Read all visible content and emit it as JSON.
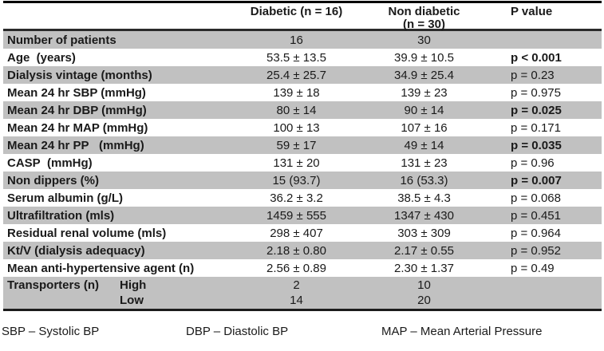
{
  "header": {
    "diabetic": "Diabetic (n = 16)",
    "nondiabetic_line1": "Non diabetic",
    "nondiabetic_line2": "(n = 30)",
    "p_value": "P value"
  },
  "rows": [
    {
      "label": "Number of patients",
      "diabetic": "16",
      "nondiabetic": "30",
      "p": ""
    },
    {
      "label": "Age  (years)",
      "diabetic": "53.5 ± 13.5",
      "nondiabetic": "39.9 ± 10.5",
      "p": "p < 0.001"
    },
    {
      "label": "Dialysis vintage (months)",
      "diabetic": "25.4 ± 25.7",
      "nondiabetic": "34.9 ± 25.4",
      "p": "p = 0.23"
    },
    {
      "label": "Mean 24 hr SBP (mmHg)",
      "diabetic": "139 ± 18",
      "nondiabetic": "139 ± 23",
      "p": "p = 0.975"
    },
    {
      "label": "Mean 24 hr DBP (mmHg)",
      "diabetic": "80 ± 14",
      "nondiabetic": "90 ± 14",
      "p": "p = 0.025"
    },
    {
      "label": "Mean 24 hr MAP (mmHg)",
      "diabetic": "100 ± 13",
      "nondiabetic": "107 ± 16",
      "p": "p = 0.171"
    },
    {
      "label": "Mean 24 hr PP   (mmHg)",
      "diabetic": "59 ± 17",
      "nondiabetic": "49 ± 14",
      "p": "p = 0.035"
    },
    {
      "label": "CASP  (mmHg)",
      "diabetic": "131 ± 20",
      "nondiabetic": "131 ± 23",
      "p": "p = 0.96"
    },
    {
      "label": "Non dippers (%)",
      "diabetic": "15 (93.7)",
      "nondiabetic": "16 (53.3)",
      "p": "p = 0.007"
    },
    {
      "label": "Serum albumin (g/L)",
      "diabetic": "36.2 ± 3.2",
      "nondiabetic": "38.5 ± 4.3",
      "p": "p = 0.068"
    },
    {
      "label": "Ultrafiltration (mls)",
      "diabetic": "1459 ± 555",
      "nondiabetic": "1347 ± 430",
      "p": "p = 0.451"
    },
    {
      "label": "Residual renal volume (mls)",
      "diabetic": "298 ± 407",
      "nondiabetic": "303 ± 309",
      "p": "p = 0.964"
    },
    {
      "label": "Kt/V (dialysis adequacy)",
      "diabetic": "2.18 ± 0.80",
      "nondiabetic": "2.17 ± 0.55",
      "p": "p = 0.952"
    },
    {
      "label": "Mean anti-hypertensive agent (n)",
      "diabetic": "2.56 ± 0.89",
      "nondiabetic": "2.30 ± 1.37",
      "p": "p = 0.49"
    }
  ],
  "transporters": {
    "label": "Transporters (n)",
    "sub_high": "High",
    "sub_low": "Low",
    "diabetic_high": "2",
    "diabetic_low": "14",
    "nondiabetic_high": "10",
    "nondiabetic_low": "20"
  },
  "footnotes": {
    "sbp": "SBP – Systolic BP",
    "dbp": "DBP – Diastolic BP",
    "map": "MAP – Mean Arterial Pressure"
  },
  "colors": {
    "row-shade": "#c1c1c1",
    "border-dark": "#1c1c1c",
    "text": "#1a1a1a"
  }
}
